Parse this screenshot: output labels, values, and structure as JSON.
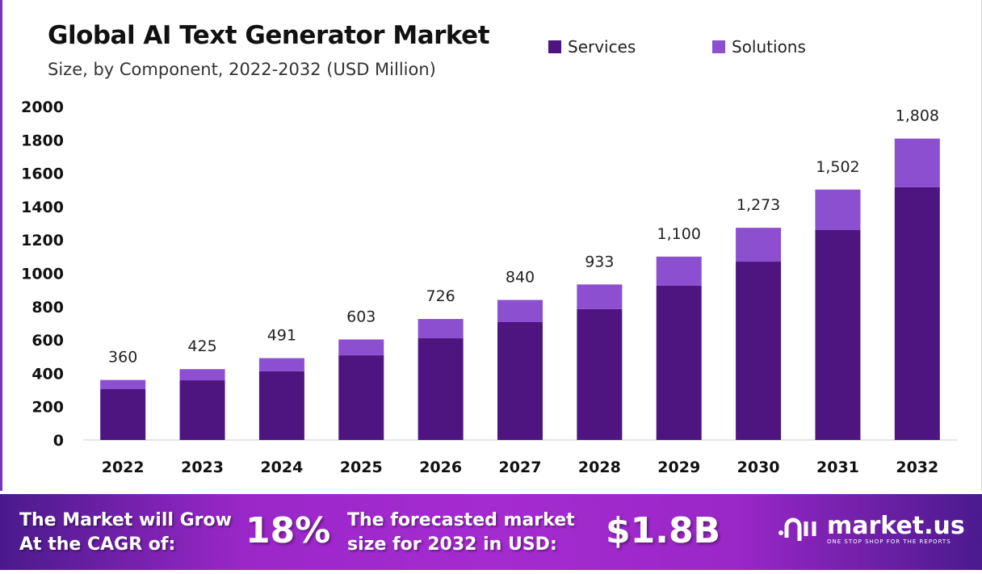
{
  "chart_data": {
    "type": "bar",
    "stacked": true,
    "title": "Global AI Text Generator Market",
    "subtitle": "Size, by Component, 2022-2032 (USD Million)",
    "categories": [
      "2022",
      "2023",
      "2024",
      "2025",
      "2026",
      "2027",
      "2028",
      "2029",
      "2030",
      "2031",
      "2032"
    ],
    "series": [
      {
        "name": "Services",
        "color": "#4e1580",
        "values": [
          305,
          358,
          412,
          508,
          610,
          707,
          785,
          925,
          1070,
          1259,
          1516
        ]
      },
      {
        "name": "Solutions",
        "color": "#8b4fd0",
        "values": [
          55,
          67,
          79,
          95,
          116,
          133,
          148,
          175,
          203,
          243,
          292
        ]
      }
    ],
    "totals_labels": [
      "360",
      "425",
      "491",
      "603",
      "726",
      "840",
      "933",
      "1,100",
      "1,273",
      "1,502",
      "1,808"
    ],
    "totals": [
      360,
      425,
      491,
      603,
      726,
      840,
      933,
      1100,
      1273,
      1502,
      1808
    ],
    "yticks": [
      "0",
      "200",
      "400",
      "600",
      "800",
      "1000",
      "1200",
      "1400",
      "1600",
      "1800",
      "2000"
    ],
    "ylim": [
      0,
      2000
    ],
    "grid": false,
    "legend": "top-right"
  },
  "footer": {
    "cagr_text_1": "The Market will Grow",
    "cagr_text_2": "At the CAGR of:",
    "cagr_value": "18%",
    "forecast_text_1": "The forecasted market",
    "forecast_text_2": "size for 2032 in USD:",
    "forecast_value": "$1.8B",
    "logo_name": "market.us",
    "logo_tagline": "ONE STOP SHOP FOR THE REPORTS"
  }
}
